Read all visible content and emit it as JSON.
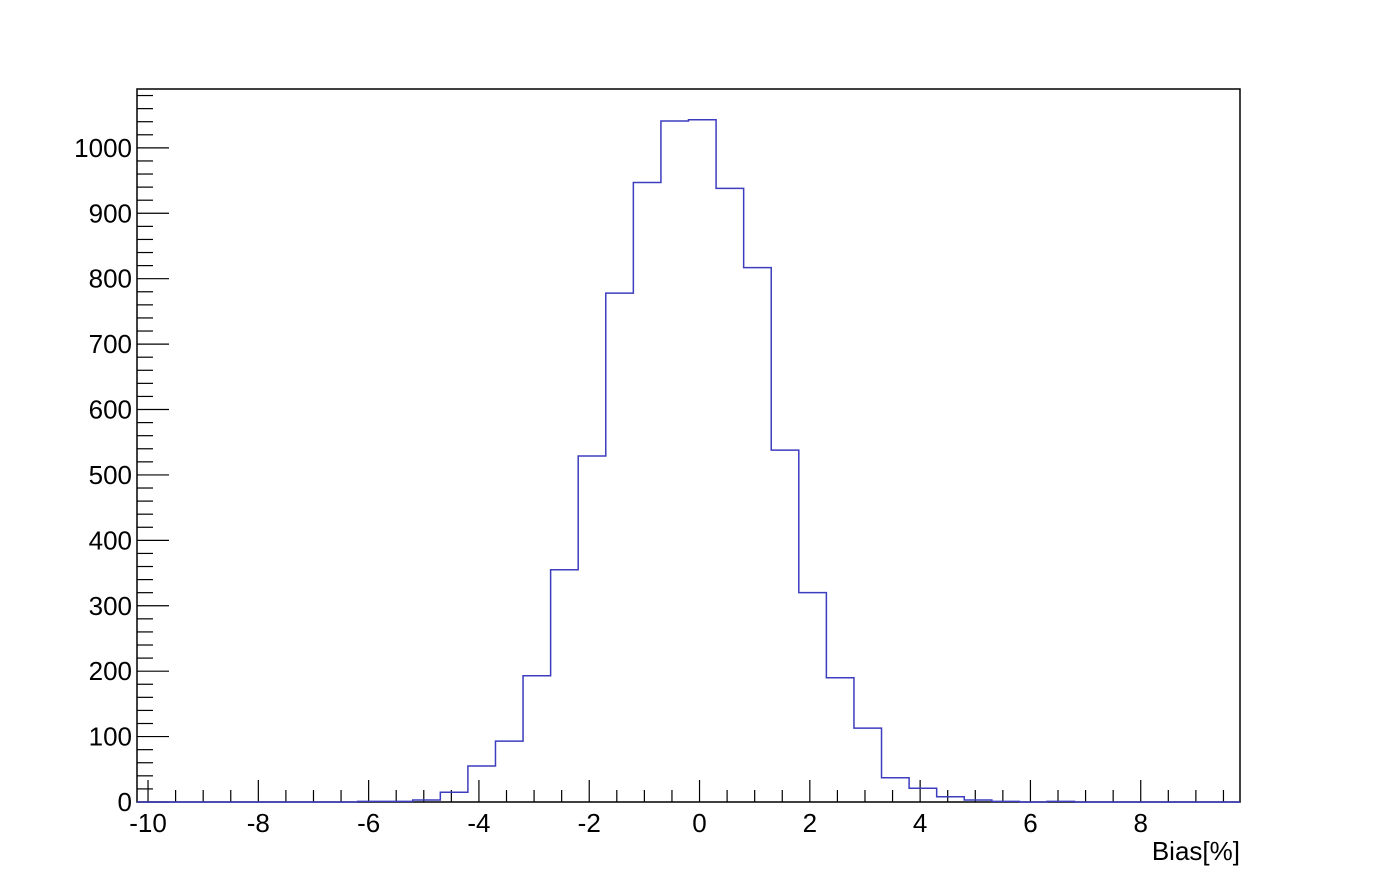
{
  "chart_data": {
    "type": "histogram",
    "title": "",
    "xlabel": "Bias[%]",
    "ylabel": "",
    "xlim": [
      -10.2,
      9.8
    ],
    "ylim": [
      0,
      1090
    ],
    "grid": false,
    "line_color": "#3d3dbf",
    "bin_width": 0.5,
    "first_bin_low": -10.2,
    "bins": [
      {
        "x0": -10.2,
        "x1": -9.7,
        "y": 0
      },
      {
        "x0": -9.7,
        "x1": -9.2,
        "y": 0
      },
      {
        "x0": -9.2,
        "x1": -8.7,
        "y": 0
      },
      {
        "x0": -8.7,
        "x1": -8.2,
        "y": 0
      },
      {
        "x0": -8.2,
        "x1": -7.7,
        "y": 0
      },
      {
        "x0": -7.7,
        "x1": -7.2,
        "y": 0
      },
      {
        "x0": -7.2,
        "x1": -6.7,
        "y": 0
      },
      {
        "x0": -6.7,
        "x1": -6.2,
        "y": 0
      },
      {
        "x0": -6.2,
        "x1": -5.7,
        "y": 1
      },
      {
        "x0": -5.7,
        "x1": -5.2,
        "y": 1
      },
      {
        "x0": -5.2,
        "x1": -4.7,
        "y": 3
      },
      {
        "x0": -4.7,
        "x1": -4.2,
        "y": 15
      },
      {
        "x0": -4.2,
        "x1": -3.7,
        "y": 55
      },
      {
        "x0": -3.7,
        "x1": -3.2,
        "y": 93
      },
      {
        "x0": -3.2,
        "x1": -2.7,
        "y": 193
      },
      {
        "x0": -2.7,
        "x1": -2.2,
        "y": 355
      },
      {
        "x0": -2.2,
        "x1": -1.7,
        "y": 529
      },
      {
        "x0": -1.7,
        "x1": -1.2,
        "y": 778
      },
      {
        "x0": -1.2,
        "x1": -0.7,
        "y": 947
      },
      {
        "x0": -0.7,
        "x1": -0.2,
        "y": 1041
      },
      {
        "x0": -0.2,
        "x1": 0.3,
        "y": 1043
      },
      {
        "x0": 0.3,
        "x1": 0.8,
        "y": 938
      },
      {
        "x0": 0.8,
        "x1": 1.3,
        "y": 817
      },
      {
        "x0": 1.3,
        "x1": 1.8,
        "y": 538
      },
      {
        "x0": 1.8,
        "x1": 2.3,
        "y": 320
      },
      {
        "x0": 2.3,
        "x1": 2.8,
        "y": 190
      },
      {
        "x0": 2.8,
        "x1": 3.3,
        "y": 113
      },
      {
        "x0": 3.3,
        "x1": 3.8,
        "y": 37
      },
      {
        "x0": 3.8,
        "x1": 4.3,
        "y": 21
      },
      {
        "x0": 4.3,
        "x1": 4.8,
        "y": 8
      },
      {
        "x0": 4.8,
        "x1": 5.3,
        "y": 3
      },
      {
        "x0": 5.3,
        "x1": 5.8,
        "y": 1
      },
      {
        "x0": 5.8,
        "x1": 6.3,
        "y": 0
      },
      {
        "x0": 6.3,
        "x1": 6.8,
        "y": 1
      },
      {
        "x0": 6.8,
        "x1": 7.3,
        "y": 0
      },
      {
        "x0": 7.3,
        "x1": 7.8,
        "y": 0
      },
      {
        "x0": 7.8,
        "x1": 8.3,
        "y": 0
      },
      {
        "x0": 8.3,
        "x1": 8.8,
        "y": 0
      },
      {
        "x0": 8.8,
        "x1": 9.3,
        "y": 0
      },
      {
        "x0": 9.3,
        "x1": 9.8,
        "y": 0
      }
    ],
    "x_ticks": [
      "-10",
      "-8",
      "-6",
      "-4",
      "-2",
      "0",
      "2",
      "4",
      "6",
      "8"
    ],
    "x_tick_values": [
      -10,
      -8,
      -6,
      -4,
      -2,
      0,
      2,
      4,
      6,
      8
    ],
    "y_ticks": [
      "0",
      "100",
      "200",
      "300",
      "400",
      "500",
      "600",
      "700",
      "800",
      "900",
      "1000"
    ],
    "y_tick_values": [
      0,
      100,
      200,
      300,
      400,
      500,
      600,
      700,
      800,
      900,
      1000
    ]
  }
}
